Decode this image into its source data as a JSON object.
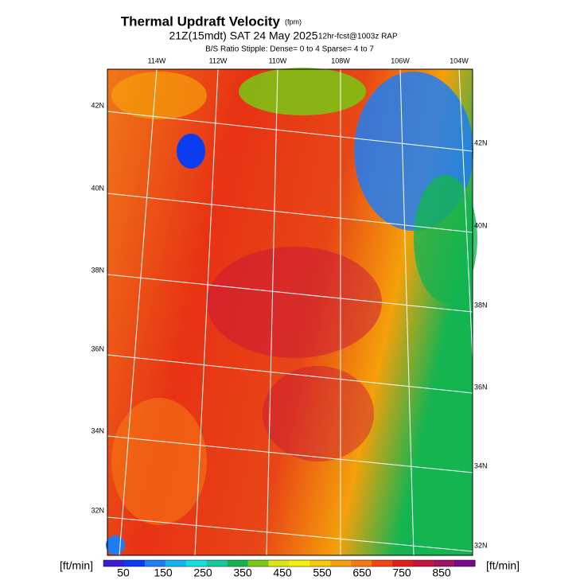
{
  "header": {
    "title": "Thermal Updraft Velocity",
    "title_unit": "(fpm)",
    "subtitle": "21Z(15mdt) SAT 24 May 2025",
    "run": "12hr-fcst@1003z RAP",
    "stipple": "B/S Ratio Stipple:  Dense= 0 to 4  Sparse= 4 to 7"
  },
  "map": {
    "lon_labels": [
      "114W",
      "112W",
      "110W",
      "108W",
      "106W",
      "104W"
    ],
    "lat_labels_left": [
      "42N",
      "40N",
      "38N",
      "36N",
      "34N",
      "32N"
    ],
    "lat_labels_right": [
      "42N",
      "40N",
      "38N",
      "36N",
      "34N",
      "32N"
    ]
  },
  "colorbar": {
    "units": "[ft/min]",
    "labels": [
      50,
      150,
      250,
      350,
      450,
      550,
      650,
      750,
      850
    ],
    "colors": [
      "#3a1fd0",
      "#0a3cf0",
      "#1e7cf5",
      "#14b4f0",
      "#10e0e0",
      "#14c8a0",
      "#14b450",
      "#78c814",
      "#dce614",
      "#f5f00a",
      "#f5c80a",
      "#f5a00a",
      "#f57814",
      "#f04614",
      "#e01e1e",
      "#c8143c",
      "#a01464",
      "#780a8c"
    ]
  }
}
